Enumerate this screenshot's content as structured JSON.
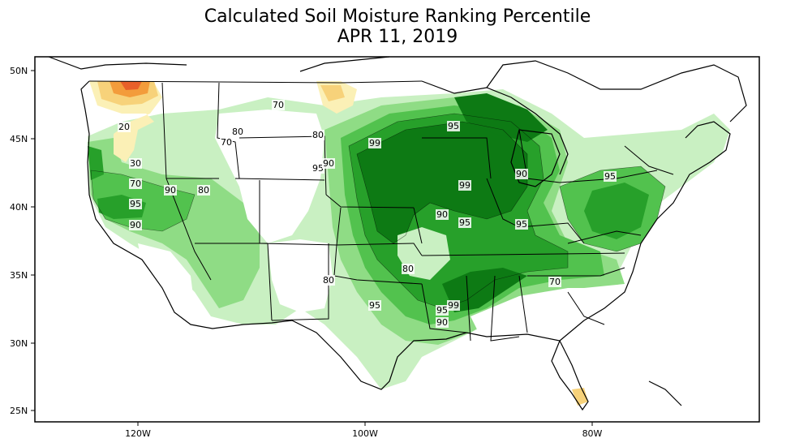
{
  "title": "Calculated Soil Moisture Ranking Percentile",
  "subtitle": "APR 11, 2019",
  "lat_labels": [
    "50N",
    "45N",
    "40N",
    "35N",
    "30N",
    "25N"
  ],
  "lon_labels": [
    "120W",
    "100W",
    "80W"
  ],
  "contour_labels": [
    "70",
    "20",
    "80",
    "70",
    "30",
    "70",
    "90",
    "80",
    "95",
    "90",
    "80",
    "95",
    "90",
    "95",
    "99",
    "99",
    "90",
    "95",
    "90",
    "95",
    "95",
    "80",
    "80",
    "95",
    "95",
    "99",
    "90",
    "70"
  ],
  "colors": {
    "p5": "#e8602a",
    "p10": "#f39c3b",
    "p20": "#f7d27a",
    "p30": "#fbf0b6",
    "p70": "#c9f0c2",
    "p80": "#8fdc85",
    "p90": "#52c24e",
    "p95": "#27a02a",
    "p99": "#0d7a14",
    "lines": "#000000"
  }
}
